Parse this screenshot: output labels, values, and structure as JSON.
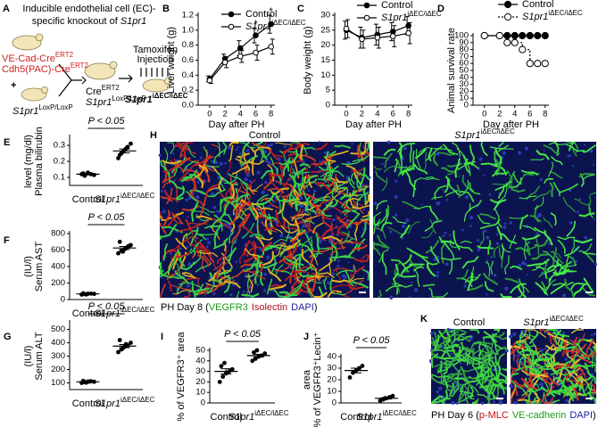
{
  "schematic": {
    "panel": "A",
    "title_lines": [
      "Inducible endothelial cell (EC)-",
      "specific knockout of "
    ],
    "title_gene": "S1pr1",
    "cre_lines": [
      {
        "text": "VE-Cad-Cre",
        "sup": "ERT2"
      },
      {
        "text": "Cdh5(PAC)-Cre",
        "sup": "ERT2"
      }
    ],
    "plus": "+",
    "flox": {
      "text": "S1pr1",
      "sup": "LoxP/LoxP"
    },
    "offspring": [
      {
        "text": "Cre",
        "sup": "ERT2"
      },
      {
        "text": "S1pr1",
        "sup": "LoxP/LoxP"
      }
    ],
    "treatment": [
      "Tamoxifen",
      "Injection"
    ],
    "result": {
      "text": "S1pr1",
      "sup": "iΔEC/iΔEC"
    }
  },
  "chart_data": [
    {
      "panel": "B",
      "type": "line",
      "ylabel": "Liver weight (g)",
      "xlabel": "Day after PH",
      "x": [
        0,
        2,
        4,
        6,
        8
      ],
      "xlim": [
        -1.5,
        8.5
      ],
      "xticks": [
        0,
        2,
        4,
        6,
        8
      ],
      "ylim": [
        0,
        1.2
      ],
      "yticks": [
        {
          "value": 0,
          "label": "0.0"
        },
        0.2,
        0.4,
        0.6,
        0.8,
        {
          "value": 1,
          "label": "1.0"
        },
        1.2
      ],
      "legend": "upper left",
      "asterisks": [
        null,
        null,
        null,
        "*",
        "*"
      ],
      "series": [
        {
          "name": "Control",
          "color": "#000000",
          "marker_fill": "#000000",
          "values": [
            0.35,
            0.62,
            0.76,
            0.93,
            1.08
          ],
          "errors": [
            0.04,
            0.06,
            0.1,
            0.1,
            0.12
          ]
        },
        {
          "name": "S1pr1",
          "name_sup": "iΔEC/iΔEC",
          "color": "#000000",
          "marker_fill": "#ffffff",
          "values": [
            0.33,
            0.57,
            0.65,
            0.7,
            0.78
          ],
          "errors": [
            0.04,
            0.07,
            0.08,
            0.1,
            0.1
          ]
        }
      ]
    },
    {
      "panel": "C",
      "type": "line",
      "ylabel": "Body weight (g)",
      "xlabel": "Day after PH",
      "x": [
        0,
        2,
        4,
        6,
        8
      ],
      "xlim": [
        -1.5,
        8.5
      ],
      "xticks": [
        0,
        2,
        4,
        6,
        8
      ],
      "ylim": [
        0,
        30
      ],
      "yticks": [
        0,
        5,
        10,
        15,
        20,
        25,
        30
      ],
      "legend": "top",
      "series": [
        {
          "name": "Control",
          "color": "#000000",
          "marker_fill": "#000000",
          "values": [
            25,
            22.5,
            23.5,
            24.5,
            26.5
          ],
          "errors": [
            3,
            3.5,
            3.5,
            3,
            3
          ]
        },
        {
          "name": "S1pr1",
          "name_sup": "iΔEC/iΔEC",
          "color": "#000000",
          "marker_fill": "#ffffff",
          "values": [
            25.5,
            22,
            22.5,
            23,
            24
          ],
          "errors": [
            3,
            3,
            3.5,
            3.5,
            3.5
          ]
        }
      ]
    },
    {
      "panel": "D",
      "type": "line",
      "step": true,
      "ylabel": "Animal survival rate",
      "xlabel": "Day after PH",
      "xlim": [
        -1.5,
        8.5
      ],
      "xticks": [
        0,
        2,
        4,
        6,
        8
      ],
      "ylim": [
        0,
        100
      ],
      "yticks": [
        0,
        10,
        20,
        30,
        40,
        50,
        60,
        70,
        80,
        90,
        100
      ],
      "legend": "top",
      "series": [
        {
          "name": "Control",
          "color": "#000000",
          "marker_fill": "#000000",
          "x": [
            0,
            2,
            3,
            4,
            5,
            6,
            7,
            8
          ],
          "values": [
            100,
            100,
            100,
            100,
            100,
            100,
            100,
            100
          ]
        },
        {
          "name": "S1pr1",
          "name_sup": "iΔEC/iΔEC",
          "color": "#000000",
          "marker_fill": "#ffffff",
          "dash": "2,2",
          "x": [
            0,
            2,
            3,
            4,
            5,
            6,
            7,
            8
          ],
          "values": [
            100,
            100,
            90,
            90,
            80,
            60,
            60,
            60
          ]
        }
      ]
    },
    {
      "panel": "E",
      "type": "dot",
      "ylabel": [
        "Plasma bilirubin",
        "level (mg/dl)"
      ],
      "categories": [
        "Control",
        "S1pr1"
      ],
      "category_superscripts": [
        null,
        "iΔEC/iΔEC"
      ],
      "ylim": [
        0.05,
        0.35
      ],
      "yticks": [
        0.1,
        0.2,
        0.3
      ],
      "points": [
        [
          0.12,
          0.11,
          0.13,
          0.12,
          0.115,
          0.125
        ],
        [
          0.22,
          0.25,
          0.27,
          0.29,
          0.31,
          0.24,
          0.26,
          0.28
        ]
      ],
      "means": [
        0.12,
        0.265
      ],
      "sems": [
        0.005,
        0.012
      ],
      "annotation": "P < 0.05"
    },
    {
      "panel": "F",
      "type": "dot",
      "ylabel": [
        "Serum AST",
        "(IU/l)"
      ],
      "categories": [
        "Control",
        "S1pr1"
      ],
      "category_superscripts": [
        null,
        "iΔEC/iΔEC"
      ],
      "ylim": [
        0,
        800
      ],
      "yticks": [
        0,
        200,
        400,
        600,
        800
      ],
      "points": [
        [
          60,
          65,
          70,
          72,
          68,
          75,
          62
        ],
        [
          560,
          590,
          610,
          640,
          660,
          700,
          580,
          620,
          650
        ]
      ],
      "means": [
        68,
        625
      ],
      "sems": [
        5,
        18
      ],
      "annotation": "P < 0.05"
    },
    {
      "panel": "G",
      "type": "dot",
      "ylabel": [
        "Serum ALT",
        "(IU/l)"
      ],
      "categories": [
        "Control",
        "S1pr1"
      ],
      "category_superscripts": [
        null,
        "iΔEC/iΔEC"
      ],
      "ylim": [
        50,
        550
      ],
      "yticks": [
        100,
        200,
        300,
        400,
        500
      ],
      "points": [
        [
          100,
          105,
          110,
          112,
          108,
          115,
          102,
          110
        ],
        [
          330,
          350,
          370,
          380,
          400,
          420,
          360,
          390
        ]
      ],
      "means": [
        108,
        375
      ],
      "sems": [
        4,
        12
      ],
      "annotation": "P < 0.05"
    },
    {
      "panel": "I",
      "type": "dot",
      "ylabel": [
        "% of VEGFR3⁺ area"
      ],
      "categories": [
        "Control",
        "S1pr1"
      ],
      "category_superscripts": [
        null,
        "iΔEC/iΔEC"
      ],
      "ylim": [
        0,
        50
      ],
      "yticks": [
        0,
        10,
        20,
        30,
        40,
        50
      ],
      "points": [
        [
          20,
          25,
          28,
          30,
          32,
          35,
          38
        ],
        [
          40,
          42,
          44,
          45,
          47,
          48,
          50
        ]
      ],
      "means": [
        30,
        45
      ],
      "sems": [
        2.5,
        1.3
      ],
      "annotation": "P < 0.05"
    },
    {
      "panel": "J",
      "type": "dot",
      "ylabel": [
        "% of VEGFR3⁺Lecin⁺",
        "area"
      ],
      "categories": [
        "Control",
        "S1pr1"
      ],
      "category_superscripts": [
        null,
        "iΔEC/iΔEC"
      ],
      "ylim": [
        0,
        40
      ],
      "yticks": [
        0,
        10,
        20,
        30,
        40
      ],
      "points": [
        [
          22,
          26,
          28,
          30,
          32
        ],
        [
          2,
          3,
          4,
          5,
          6,
          3,
          4
        ]
      ],
      "means": [
        28,
        4
      ],
      "sems": [
        2,
        0.6
      ],
      "annotation": "P < 0.05"
    }
  ],
  "images": [
    {
      "panel": "H",
      "titles": [
        {
          "text": "Control"
        },
        {
          "text": "S1pr1",
          "sup": "iΔEC/iΔEC"
        }
      ],
      "caption": [
        "PH Day 8 (",
        "VEGFR3",
        "Isolectin",
        "DAPI",
        ")"
      ],
      "caption_colors": [
        "#000000",
        "#1a9a1a",
        "#b01020",
        "#2020a0",
        "#000000"
      ]
    },
    {
      "panel": "K",
      "titles": [
        {
          "text": "Control"
        },
        {
          "text": "S1pr1",
          "sup": "iΔEC/iΔEC"
        }
      ],
      "caption": [
        "PH Day 6 (",
        "p-MLC",
        "VE-cadherin",
        "DAPI",
        ")"
      ],
      "caption_colors": [
        "#000000",
        "#c01010",
        "#1a9a1a",
        "#2020a0",
        "#000000"
      ]
    }
  ]
}
